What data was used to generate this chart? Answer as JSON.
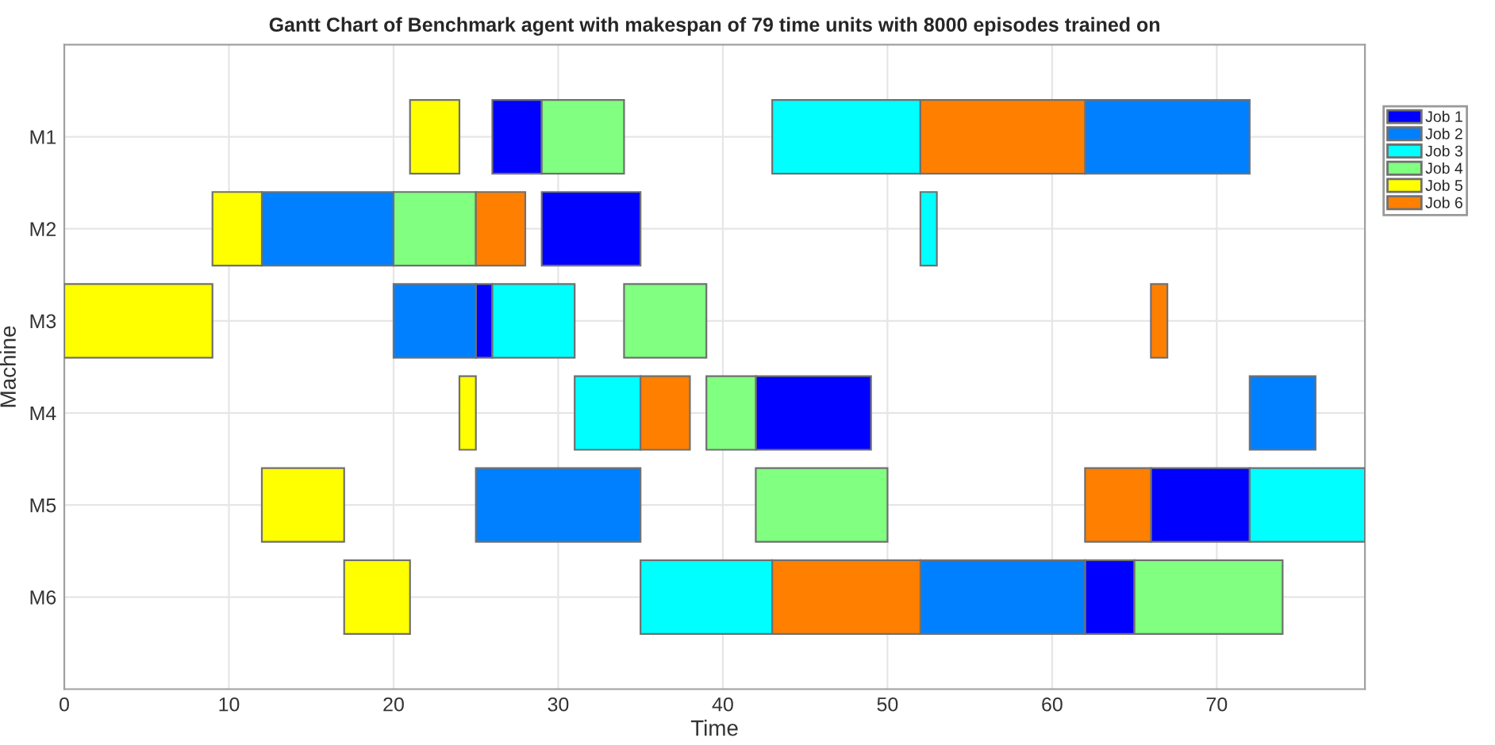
{
  "chart_data": {
    "type": "bar",
    "orientation": "horizontal",
    "title": "Gantt Chart of Benchmark agent with makespan of 79 time units with 8000 episodes trained on",
    "xlabel": "Time",
    "ylabel": "Machine",
    "categories": [
      "M1",
      "M2",
      "M3",
      "M4",
      "M5",
      "M6"
    ],
    "series": [
      {
        "name": "Job 1",
        "color": "#0000ff",
        "base": [
          26,
          29,
          25,
          42,
          66,
          62
        ],
        "values": [
          3,
          6,
          1,
          7,
          6,
          3
        ]
      },
      {
        "name": "Job 2",
        "color": "#0080ff",
        "base": [
          62,
          12,
          20,
          72,
          25,
          52
        ],
        "values": [
          10,
          8,
          5,
          4,
          10,
          10
        ]
      },
      {
        "name": "Job 3",
        "color": "#00ffff",
        "base": [
          43,
          52,
          26,
          31,
          72,
          35
        ],
        "values": [
          9,
          1,
          5,
          4,
          7,
          8
        ]
      },
      {
        "name": "Job 4",
        "color": "#80ff80",
        "base": [
          29,
          20,
          34,
          39,
          42,
          65
        ],
        "values": [
          5,
          5,
          5,
          3,
          8,
          9
        ]
      },
      {
        "name": "Job 5",
        "color": "#ffff00",
        "base": [
          21,
          9,
          0,
          24,
          12,
          17
        ],
        "values": [
          3,
          3,
          9,
          1,
          5,
          4
        ]
      },
      {
        "name": "Job 6",
        "color": "#ff8000",
        "base": [
          52,
          25,
          66,
          35,
          62,
          43
        ],
        "values": [
          10,
          3,
          1,
          3,
          4,
          9
        ]
      }
    ],
    "xlim": [
      0,
      79
    ],
    "xticks": [
      0,
      10,
      20,
      30,
      40,
      50,
      60,
      70
    ],
    "grid": true,
    "legend": "right"
  }
}
